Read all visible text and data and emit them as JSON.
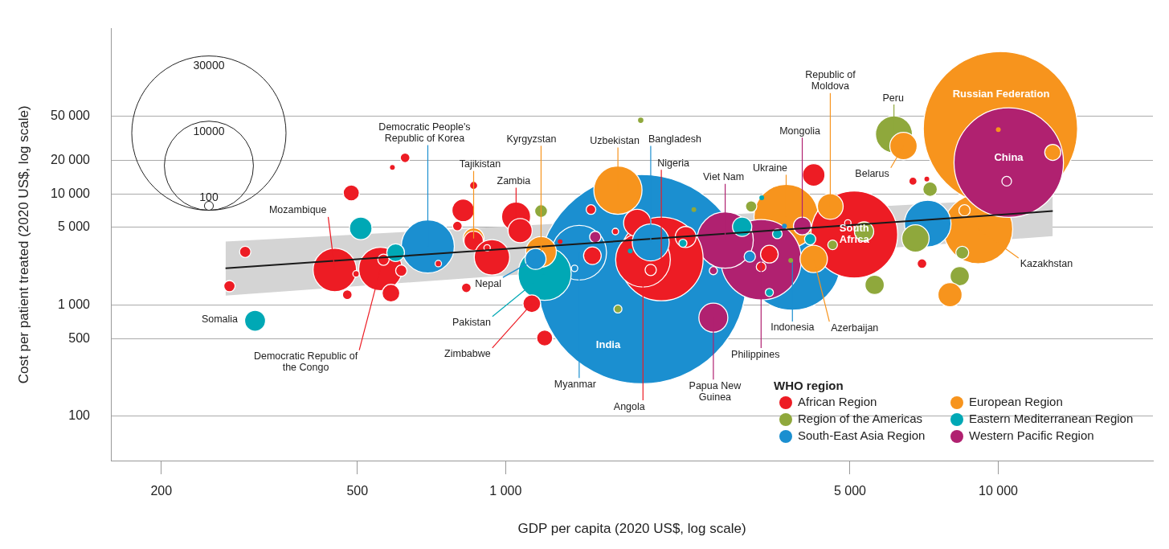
{
  "chart_data": {
    "type": "bubble",
    "xlabel": "GDP per capita (2020 US$, log scale)",
    "ylabel": "Cost per patient treated (2020 US$, log scale)",
    "legend_title": "WHO region",
    "legend": "bottom right",
    "log": "xy",
    "grid": "y",
    "xlim": [
      158,
      20600
    ],
    "ylim": [
      40,
      306000
    ],
    "xticks": [
      200,
      500,
      {
        "value": 1000,
        "label": "1 000"
      },
      {
        "value": 5000,
        "label": "5 000"
      },
      {
        "value": 10000,
        "label": "10 000"
      }
    ],
    "yticks": [
      100,
      500,
      {
        "value": 1000,
        "label": "1 000"
      },
      {
        "value": 5000,
        "label": "5 000"
      },
      {
        "value": 10000,
        "label": "10 000"
      },
      {
        "value": 20000,
        "label": "20 000"
      },
      {
        "value": 50000,
        "label": "50 000"
      }
    ],
    "size_legend": [
      100,
      10000,
      30000
    ],
    "series": [
      {
        "color": "#1b8fd0",
        "x": [
          1890,
          3820,
          1410,
          695
        ],
        "values": [
          1710,
          2440,
          2960,
          3370
        ],
        "sizes": [
          55100,
          11700,
          3770,
          3550
        ]
      },
      {
        "color": "#00a8b5",
        "x": [
          1200
        ],
        "values": [
          1910
        ],
        "sizes": [
          3550
        ]
      },
      {
        "color": "#f7941d",
        "x": [
          10100,
          9100,
          3710,
          1690,
          1180,
          861
        ],
        "values": [
          38500,
          4820,
          6250,
          10800,
          3010,
          3970
        ],
        "sizes": [
          30000,
          6030,
          5220,
          2930,
          1180,
          551
        ]
      },
      {
        "color": "#b02170",
        "x": [
          10500,
          3300,
          2790
        ],
        "values": [
          19100,
          2560,
          3840
        ],
        "sizes": [
          15100,
          8150,
          3990
        ]
      },
      {
        "color": "#1b8fd0",
        "x": [
          7190
        ],
        "values": [
          5400
        ],
        "sizes": [
          2740
        ]
      },
      {
        "name": "African Region",
        "color": "#ed1c24",
        "x": [
          2070,
          5100,
          1900,
          450,
          557,
          296,
          275,
          497,
          477,
          486,
          625,
          589,
          565,
          614,
          585,
          730,
          861,
          820,
          798,
          861,
          938,
          917,
          832,
          1050,
          1070,
          1130,
          1200,
          1290,
          1490,
          1670,
          1500,
          1850,
          1970,
          2320,
          3430,
          3300,
          4220,
          4950,
          6710,
          7160,
          7000
        ],
        "values": [
          2600,
          4310,
          2560,
          2070,
          2110,
          3010,
          1480,
          1910,
          1240,
          10200,
          21100,
          17300,
          2560,
          2040,
          1280,
          2360,
          11900,
          7110,
          5140,
          3780,
          2690,
          3270,
          1430,
          6250,
          4670,
          1030,
          506,
          3720,
          7230,
          4590,
          2780,
          5480,
          2070,
          4100,
          2870,
          2210,
          14800,
          5480,
          13000,
          13600,
          2360
        ],
        "sizes": [
          8820,
          9510,
          3770,
          2380,
          2380,
          160,
          160,
          52,
          117,
          326,
          117,
          29,
          160,
          160,
          394,
          52,
          82,
          639,
          117,
          469,
          1580,
          52,
          117,
          1060,
          734,
          394,
          326,
          29,
          117,
          52,
          394,
          942,
          160,
          551,
          394,
          117,
          639,
          52,
          82,
          29,
          117
        ]
      },
      {
        "name": "Region of the Americas",
        "color": "#8fa83c",
        "x": [
          1880,
          1180,
          2410,
          1690,
          3150,
          3790,
          4610,
          5340,
          5610,
          6140,
          7270,
          6790,
          8450,
          8350
        ],
        "values": [
          45900,
          7000,
          7230,
          922,
          7710,
          2520,
          3480,
          4590,
          1520,
          34300,
          11000,
          3970,
          2960,
          1820
        ],
        "sizes": [
          52,
          209,
          29,
          82,
          160,
          29,
          117,
          469,
          469,
          1720,
          264,
          942,
          209,
          469
        ]
      },
      {
        "name": "South-East Asia Region",
        "color": "#1b8fd0",
        "x": [
          1970,
          1150,
          3130,
          3680,
          1380
        ],
        "values": [
          3660,
          2600,
          2730,
          5140,
          2140
        ],
        "sizes": [
          1720,
          551,
          160,
          29,
          52
        ]
      },
      {
        "name": "European Region",
        "color": "#f7941d",
        "x": [
          6420,
          4560,
          4220,
          10000,
          12900,
          8540,
          7980
        ],
        "values": [
          26900,
          7710,
          2600,
          37800,
          23600,
          7110,
          1240
        ],
        "sizes": [
          942,
          835,
          942,
          29,
          326,
          160,
          734
        ]
      },
      {
        "name": "Eastern Mediterranean Region",
        "color": "#00a8b5",
        "x": [
          310,
          508,
          598,
          1790,
          2290,
          3020,
          3310,
          3560,
          4150,
          3430
        ],
        "values": [
          723,
          4900,
          2960,
          3060,
          3600,
          5060,
          9220,
          4370,
          3910,
          1300
        ],
        "sizes": [
          551,
          639,
          394,
          29,
          82,
          469,
          29,
          117,
          160,
          82
        ]
      },
      {
        "name": "Western Pacific Region",
        "color": "#b02170",
        "x": [
          2640,
          4000,
          1520,
          2640,
          10400
        ],
        "values": [
          771,
          5140,
          4100,
          2040,
          13000
        ],
        "sizes": [
          1060,
          394,
          160,
          82,
          117
        ]
      },
      {
        "type": "line",
        "color": "#1a1a1a",
        "x": [
          270,
          12900
        ],
        "values": [
          2140,
          7000
        ],
        "lower": [
          1215,
          4170
        ],
        "upper": [
          3720,
          9370
        ]
      }
    ],
    "annotations": [
      {
        "text": "Mozambique",
        "x": 450,
        "y": 2070
      },
      {
        "text": "Democratic Republic of the Congo",
        "x": 557,
        "y": 2110
      },
      {
        "text": "Somalia",
        "x": 310,
        "y": 723
      },
      {
        "text": "Democratic People's Republic of Korea",
        "x": 695,
        "y": 3370
      },
      {
        "text": "Tajikistan",
        "x": 861,
        "y": 3970
      },
      {
        "text": "Zambia",
        "x": 1050,
        "y": 6250
      },
      {
        "text": "Kyrgyzstan",
        "x": 1180,
        "y": 3010
      },
      {
        "text": "Nepal",
        "x": 1150,
        "y": 2600
      },
      {
        "text": "Pakistan",
        "x": 1200,
        "y": 1910
      },
      {
        "text": "Zimbabwe",
        "x": 1130,
        "y": 1030
      },
      {
        "text": "Uzbekistan",
        "x": 1690,
        "y": 10800
      },
      {
        "text": "Bangladesh",
        "x": 1970,
        "y": 3660
      },
      {
        "text": "Nigeria",
        "x": 2070,
        "y": 2600
      },
      "India",
      {
        "text": "Myanmar",
        "x": 1410,
        "y": 2960
      },
      {
        "text": "Angola",
        "x": 1900,
        "y": 2560
      },
      {
        "text": "Viet Nam",
        "x": 2790,
        "y": 3840
      },
      {
        "text": "Papua New Guinea",
        "x": 2640,
        "y": 771
      },
      {
        "text": "Philippines",
        "x": 3300,
        "y": 2560
      },
      {
        "text": "Ukraine",
        "x": 3710,
        "y": 6250
      },
      {
        "text": "Mongolia",
        "x": 4000,
        "y": 5140
      },
      {
        "text": "Republic of Moldova",
        "x": 4560,
        "y": 7710
      },
      {
        "text": "Indonesia",
        "x": 3820,
        "y": 2440
      },
      {
        "text": "Azerbaijan",
        "x": 4220,
        "y": 2600
      },
      {
        "text": "South Africa",
        "x": 5100,
        "y": 4310
      },
      {
        "text": "Peru",
        "x": 6140,
        "y": 34300
      },
      {
        "text": "Belarus",
        "x": 6420,
        "y": 26900
      },
      "Russian Federation",
      {
        "text": "China",
        "x": 10500,
        "y": 19100
      },
      {
        "text": "Kazakhstan",
        "x": 9100,
        "y": 4820
      }
    ]
  }
}
